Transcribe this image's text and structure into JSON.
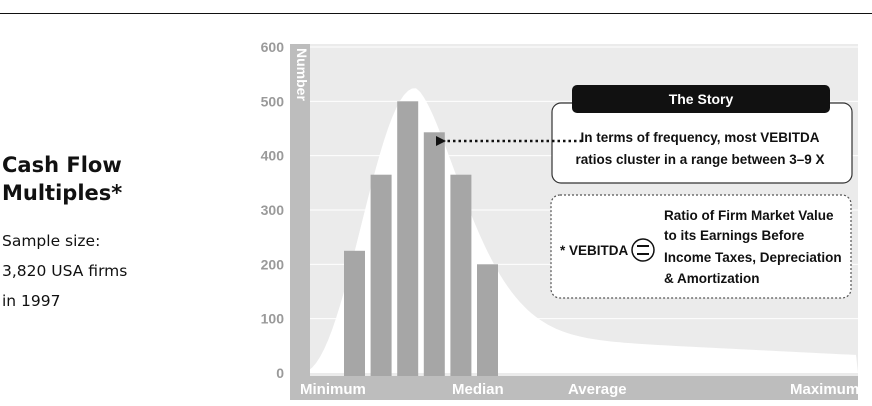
{
  "heading": {
    "line1": "Cash Flow",
    "line2": "Multiples*",
    "sample_line1": "Sample size:",
    "sample_line2": "3,820 USA firms",
    "sample_line3": "in 1997"
  },
  "chart_data": {
    "type": "bar",
    "ylabel": "Number",
    "ylim": [
      0,
      600
    ],
    "yticks": [
      "0",
      "100",
      "200",
      "300",
      "400",
      "500",
      "600"
    ],
    "x_axis_labels": [
      "Minimum",
      "Median",
      "Average",
      "Maximum"
    ],
    "values": [
      225,
      365,
      500,
      443,
      365,
      200
    ],
    "grid": true,
    "bar_color": "#a6a6a6",
    "curve_color": "#ffffff",
    "background_color": "#ebebeb",
    "axis_color": "#bdbdbd"
  },
  "story": {
    "title": "The Story",
    "line1": "In terms of frequency, most VEBITDA",
    "line2": "ratios cluster in a range between 3–9 X"
  },
  "definition": {
    "term": "* VEBITDA",
    "line1": "Ratio of Firm Market Value",
    "line2": "to its Earnings Before",
    "line3": "Income Taxes, Depreciation",
    "line4": "& Amortization"
  }
}
